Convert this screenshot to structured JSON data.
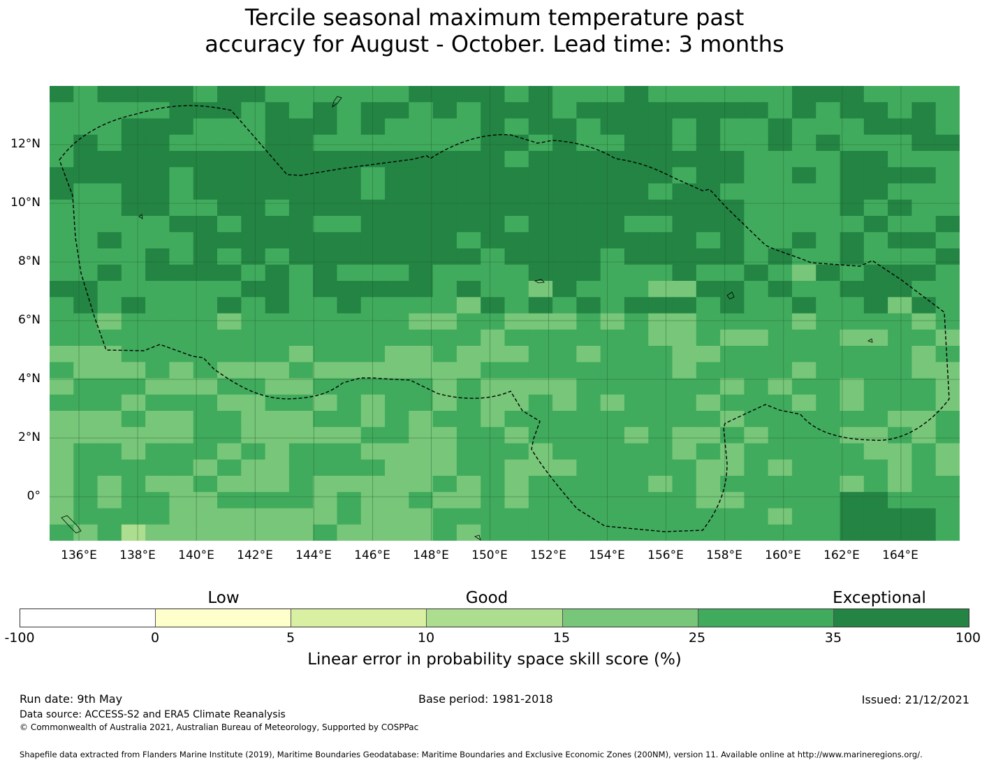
{
  "title_line1": "Tercile seasonal maximum temperature past",
  "title_line2": "accuracy for August - October. Lead time: 3 months",
  "map": {
    "lat_labels": [
      "12°N",
      "10°N",
      "8°N",
      "6°N",
      "4°N",
      "2°N",
      "0°"
    ],
    "lon_labels": [
      "136°E",
      "138°E",
      "140°E",
      "142°E",
      "144°E",
      "146°E",
      "148°E",
      "150°E",
      "152°E",
      "154°E",
      "156°E",
      "158°E",
      "160°E",
      "162°E",
      "164°E"
    ],
    "extent": {
      "lon_min": 135.0,
      "lon_max": 166.0,
      "lat_min": -1.5,
      "lat_max": 14.0
    },
    "grid_resolution_deg": 0.833,
    "skill_class_colors": {
      "lt0": "#ffffff",
      "0-5": "#ffffcc",
      "5-10": "#d9f0a3",
      "10-15": "#addd8e",
      "15-25": "#78c679",
      "25-35": "#41ab5d",
      "35-100": "#238443"
    }
  },
  "legend": {
    "categories": [
      "Low",
      "Good",
      "Exceptional"
    ],
    "colors": [
      "#ffffff",
      "#ffffcc",
      "#d9f0a3",
      "#addd8e",
      "#78c679",
      "#41ab5d",
      "#238443"
    ],
    "ticks": [
      "-100",
      "0",
      "5",
      "10",
      "15",
      "25",
      "35",
      "100"
    ],
    "label": "Linear error in probability space skill score (%)"
  },
  "footer": {
    "run_date": "Run date: 9th May",
    "base_period": "Base period: 1981-2018",
    "issued": "Issued: 21/12/2021",
    "data_source": "Data source: ACCESS-S2 and ERA5 Climate Reanalysis",
    "copyright": "© Commonwealth of Australia 2021, Australian Bureau of Meteorology, Supported by COSPPac",
    "shapefile": "Shapefile data extracted from Flanders Marine Institute (2019), Maritime Boundaries Geodatabase: Maritime Boundaries and Exclusive Economic Zones (200NM), version 11. Available online at http://www.marineregions.org/."
  }
}
